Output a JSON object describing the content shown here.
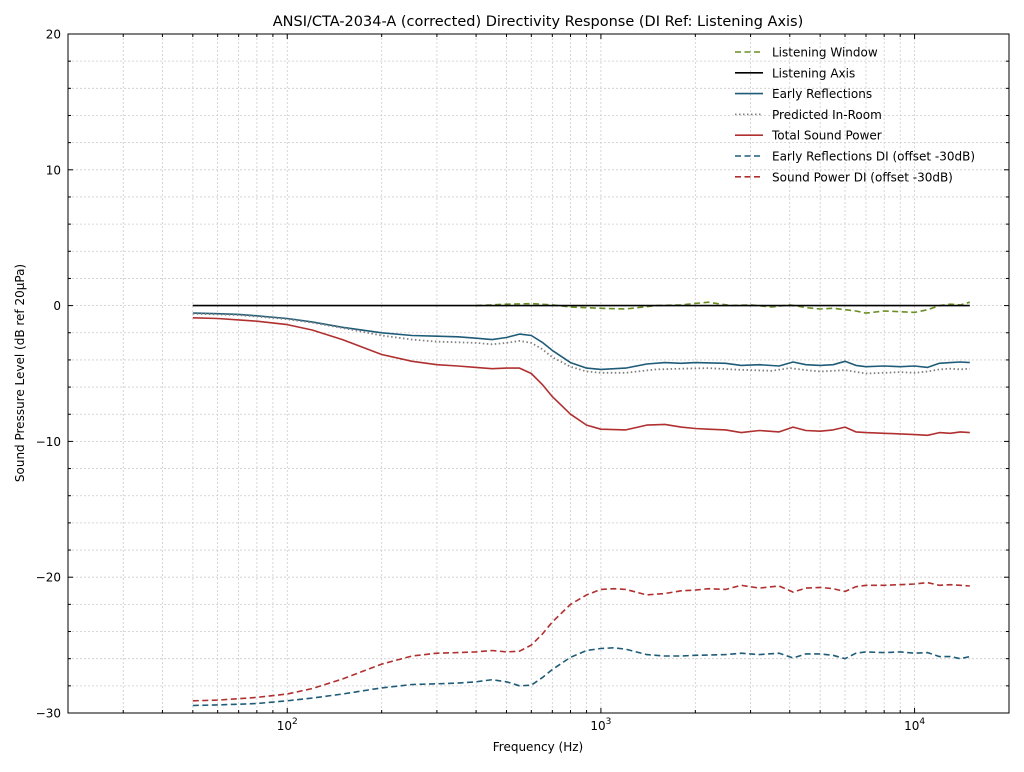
{
  "chart_data": {
    "type": "line",
    "title": "ANSI/CTA-2034-A (corrected) Directivity Response (DI Ref: Listening Axis)",
    "xlabel": "Frequency (Hz)",
    "ylabel": "Sound Pressure Level (dB ref 20µPa)",
    "xscale": "log",
    "xlim": [
      20,
      20000
    ],
    "ylim": [
      -30,
      20
    ],
    "grid": true,
    "legend_position": "top-right",
    "x_ticks": [
      {
        "value": 100,
        "base": "10",
        "exp": "2"
      },
      {
        "value": 1000,
        "base": "10",
        "exp": "3"
      },
      {
        "value": 10000,
        "base": "10",
        "exp": "4"
      }
    ],
    "y_ticks": [
      {
        "value": 20,
        "label": "20"
      },
      {
        "value": 10,
        "label": "10"
      },
      {
        "value": 0,
        "label": "0"
      },
      {
        "value": -10,
        "label": "−10"
      },
      {
        "value": -20,
        "label": "−20"
      },
      {
        "value": -30,
        "label": "−30"
      }
    ],
    "series": [
      {
        "name": "Listening Window",
        "color": "#6b8e23",
        "dash": "dashed",
        "x": [
          400,
          500,
          600,
          700,
          800,
          1000,
          1200,
          1500,
          1800,
          2200,
          2600,
          3000,
          3500,
          4000,
          4500,
          5000,
          5500,
          6000,
          6500,
          7000,
          8000,
          9000,
          10000,
          11000,
          12000,
          13000,
          14000,
          15000
        ],
        "y": [
          0.0,
          0.1,
          0.15,
          0.05,
          -0.1,
          -0.2,
          -0.25,
          0.0,
          0.05,
          0.25,
          0.0,
          0.05,
          -0.1,
          0.05,
          -0.15,
          -0.25,
          -0.2,
          -0.3,
          -0.4,
          -0.55,
          -0.4,
          -0.45,
          -0.5,
          -0.3,
          0.0,
          0.1,
          0.05,
          0.25
        ]
      },
      {
        "name": "Listening Axis",
        "color": "#000000",
        "dash": "solid",
        "x": [
          50,
          15000
        ],
        "y": [
          0.0,
          0.0
        ]
      },
      {
        "name": "Early Reflections",
        "color": "#1f5c78",
        "dash": "solid",
        "x": [
          50,
          60,
          70,
          80,
          100,
          120,
          150,
          200,
          250,
          300,
          350,
          400,
          450,
          500,
          550,
          600,
          650,
          700,
          800,
          900,
          1000,
          1200,
          1400,
          1600,
          1800,
          2000,
          2500,
          2800,
          3200,
          3700,
          4100,
          4500,
          5000,
          5500,
          6000,
          6500,
          7000,
          8000,
          9000,
          10000,
          11000,
          12000,
          13000,
          14000,
          15000
        ],
        "y": [
          -0.55,
          -0.6,
          -0.65,
          -0.75,
          -0.95,
          -1.2,
          -1.6,
          -2.0,
          -2.2,
          -2.25,
          -2.3,
          -2.4,
          -2.5,
          -2.35,
          -2.1,
          -2.2,
          -2.7,
          -3.3,
          -4.2,
          -4.6,
          -4.7,
          -4.6,
          -4.3,
          -4.2,
          -4.25,
          -4.2,
          -4.25,
          -4.4,
          -4.35,
          -4.45,
          -4.15,
          -4.35,
          -4.4,
          -4.35,
          -4.1,
          -4.4,
          -4.5,
          -4.45,
          -4.5,
          -4.45,
          -4.55,
          -4.25,
          -4.2,
          -4.15,
          -4.2
        ]
      },
      {
        "name": "Predicted In-Room",
        "color": "#808080",
        "dash": "dotted",
        "x": [
          50,
          60,
          70,
          80,
          100,
          120,
          150,
          200,
          250,
          300,
          350,
          400,
          450,
          500,
          550,
          600,
          650,
          700,
          800,
          900,
          1000,
          1200,
          1500,
          1800,
          2200,
          2600,
          3000,
          3500,
          4000,
          4500,
          5000,
          5500,
          6000,
          7000,
          8000,
          9000,
          10000,
          11000,
          12000,
          13000,
          14000,
          15000
        ],
        "y": [
          -0.6,
          -0.65,
          -0.7,
          -0.8,
          -1.0,
          -1.25,
          -1.65,
          -2.2,
          -2.5,
          -2.65,
          -2.7,
          -2.75,
          -2.85,
          -2.75,
          -2.6,
          -2.75,
          -3.2,
          -3.8,
          -4.5,
          -4.85,
          -4.95,
          -4.95,
          -4.7,
          -4.65,
          -4.6,
          -4.7,
          -4.75,
          -4.8,
          -4.6,
          -4.75,
          -4.85,
          -4.8,
          -4.75,
          -5.0,
          -4.95,
          -4.9,
          -4.95,
          -4.85,
          -4.7,
          -4.65,
          -4.7,
          -4.65
        ]
      },
      {
        "name": "Total Sound Power",
        "color": "#b03030",
        "dash": "solid",
        "x": [
          50,
          60,
          70,
          80,
          100,
          120,
          150,
          200,
          250,
          300,
          350,
          400,
          450,
          500,
          550,
          600,
          650,
          700,
          800,
          900,
          1000,
          1200,
          1400,
          1600,
          1800,
          2000,
          2200,
          2500,
          2800,
          3200,
          3700,
          4100,
          4500,
          5000,
          5500,
          6000,
          6500,
          7000,
          8000,
          9000,
          10000,
          11000,
          12000,
          13000,
          14000,
          15000
        ],
        "y": [
          -0.9,
          -0.95,
          -1.05,
          -1.15,
          -1.4,
          -1.8,
          -2.5,
          -3.6,
          -4.1,
          -4.35,
          -4.45,
          -4.55,
          -4.65,
          -4.6,
          -4.6,
          -5.0,
          -5.8,
          -6.7,
          -8.0,
          -8.8,
          -9.1,
          -9.15,
          -8.8,
          -8.75,
          -8.95,
          -9.05,
          -9.1,
          -9.15,
          -9.35,
          -9.2,
          -9.3,
          -8.95,
          -9.2,
          -9.25,
          -9.15,
          -8.95,
          -9.3,
          -9.35,
          -9.4,
          -9.45,
          -9.5,
          -9.55,
          -9.35,
          -9.4,
          -9.3,
          -9.35
        ]
      },
      {
        "name": "Early Reflections DI (offset -30dB)",
        "color": "#1f5c78",
        "dash": "dashed",
        "x": [
          50,
          60,
          70,
          80,
          100,
          120,
          150,
          200,
          250,
          300,
          350,
          400,
          450,
          500,
          550,
          600,
          650,
          700,
          800,
          900,
          1000,
          1100,
          1200,
          1400,
          1600,
          1800,
          2000,
          2500,
          2800,
          3200,
          3700,
          4100,
          4500,
          5000,
          5500,
          6000,
          6500,
          7000,
          8000,
          9000,
          10000,
          11000,
          12000,
          13000,
          14000,
          15000
        ],
        "y": [
          -29.45,
          -29.4,
          -29.35,
          -29.3,
          -29.1,
          -28.9,
          -28.6,
          -28.15,
          -27.9,
          -27.85,
          -27.8,
          -27.7,
          -27.55,
          -27.7,
          -28.0,
          -27.95,
          -27.4,
          -26.8,
          -25.9,
          -25.4,
          -25.25,
          -25.2,
          -25.3,
          -25.7,
          -25.8,
          -25.8,
          -25.75,
          -25.7,
          -25.6,
          -25.7,
          -25.6,
          -25.95,
          -25.65,
          -25.65,
          -25.75,
          -26.0,
          -25.6,
          -25.5,
          -25.55,
          -25.5,
          -25.6,
          -25.55,
          -25.85,
          -25.85,
          -26.0,
          -25.85
        ]
      },
      {
        "name": "Sound Power DI (offset -30dB)",
        "color": "#b03030",
        "dash": "dashed",
        "x": [
          50,
          60,
          70,
          80,
          100,
          120,
          150,
          200,
          250,
          300,
          350,
          400,
          450,
          500,
          550,
          600,
          650,
          700,
          800,
          900,
          1000,
          1100,
          1200,
          1400,
          1600,
          1800,
          2000,
          2200,
          2500,
          2800,
          3200,
          3700,
          4100,
          4500,
          5000,
          5500,
          6000,
          6500,
          7000,
          8000,
          9000,
          10000,
          11000,
          12000,
          13000,
          14000,
          15000
        ],
        "y": [
          -29.1,
          -29.05,
          -28.95,
          -28.85,
          -28.6,
          -28.2,
          -27.5,
          -26.4,
          -25.8,
          -25.6,
          -25.55,
          -25.5,
          -25.4,
          -25.5,
          -25.45,
          -25.0,
          -24.2,
          -23.3,
          -22.0,
          -21.3,
          -20.9,
          -20.85,
          -20.9,
          -21.3,
          -21.2,
          -21.0,
          -20.95,
          -20.85,
          -20.9,
          -20.6,
          -20.8,
          -20.65,
          -21.1,
          -20.8,
          -20.75,
          -20.85,
          -21.05,
          -20.7,
          -20.6,
          -20.6,
          -20.55,
          -20.5,
          -20.4,
          -20.6,
          -20.55,
          -20.6,
          -20.65
        ]
      }
    ]
  }
}
